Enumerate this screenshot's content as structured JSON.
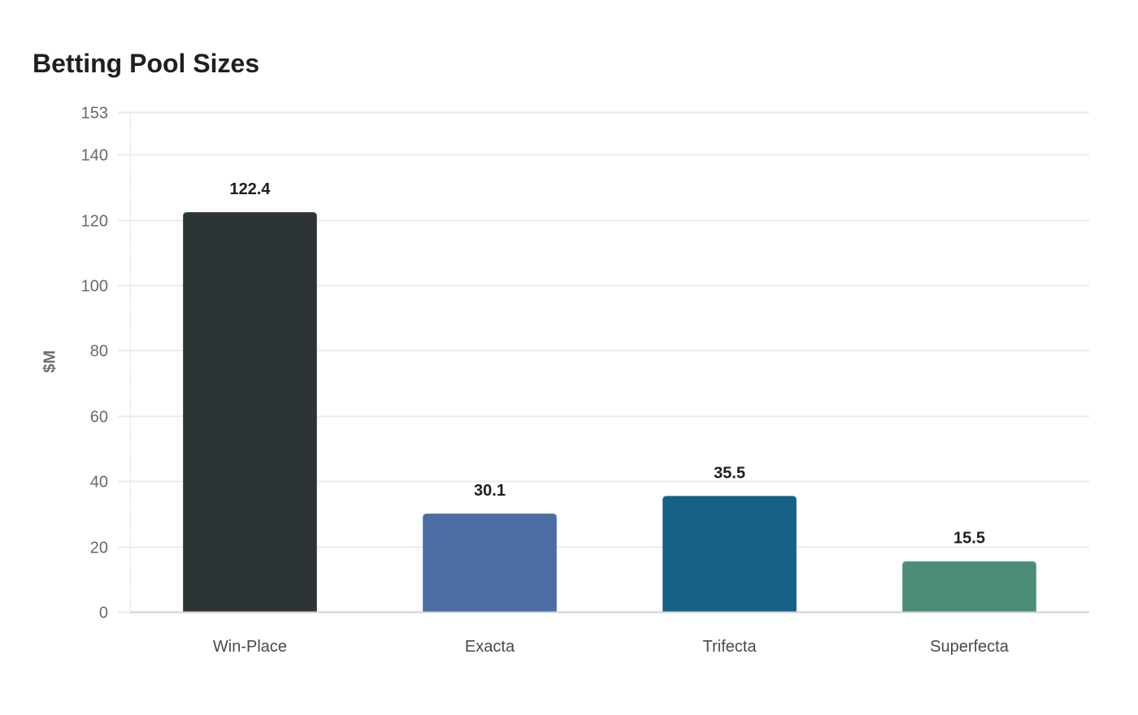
{
  "chart": {
    "title": "Betting Pool Sizes",
    "ylabel": "$M"
  },
  "chart_data": {
    "type": "bar",
    "title": "Betting Pool Sizes",
    "xlabel": "",
    "ylabel": "$M",
    "categories": [
      "Win-Place",
      "Exacta",
      "Trifecta",
      "Superfecta"
    ],
    "values": [
      122.4,
      30.1,
      35.5,
      15.5
    ],
    "colors": [
      "#2d3436",
      "#4a6da3",
      "#186186",
      "#4e8c7a"
    ],
    "ylim": [
      0,
      153
    ],
    "yticks": [
      0,
      20,
      40,
      60,
      80,
      100,
      120,
      140,
      153
    ],
    "grid": true,
    "legend": "none",
    "data_labels": true
  }
}
